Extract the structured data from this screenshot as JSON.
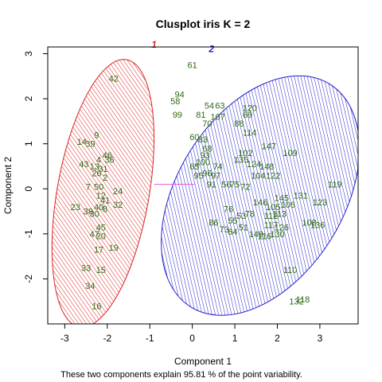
{
  "chart_data": {
    "type": "scatter",
    "title": "Clusplot iris K = 2",
    "xlabel": "Component 1",
    "ylabel": "Component 2",
    "subtitle": "These two components explain 95.81 % of the point variability.",
    "xlim": [
      -3.4,
      3.9
    ],
    "ylim": [
      -3.0,
      3.15
    ],
    "xticks": [
      "-3",
      "-2",
      "-1",
      "0",
      "1",
      "2",
      "3"
    ],
    "yticks": [
      "-2",
      "-1",
      "0",
      "1",
      "2",
      "3"
    ],
    "label_color": "#2e6b16",
    "clusters": [
      {
        "label": "1",
        "color": "#dd2222",
        "center": [
          -2.1,
          -0.1
        ],
        "rx": 1.05,
        "ry": 3.1,
        "angle_deg": 80,
        "label_pos": [
          -0.9,
          3.1
        ]
      },
      {
        "label": "2",
        "color": "#2222cc",
        "center": [
          1.6,
          -0.15
        ],
        "rx": 1.9,
        "ry": 3.0,
        "angle_deg": 58,
        "label_pos": [
          0.45,
          3.0
        ]
      }
    ],
    "link": {
      "x": [
        -0.9,
        0.05
      ],
      "y": [
        0.1,
        0.1
      ],
      "color": "#e055e0"
    },
    "points": [
      {
        "id": "42",
        "x": -1.85,
        "y": 2.45
      },
      {
        "id": "9",
        "x": -2.25,
        "y": 1.2
      },
      {
        "id": "14",
        "x": -2.6,
        "y": 1.05
      },
      {
        "id": "39",
        "x": -2.4,
        "y": 1.0
      },
      {
        "id": "4",
        "x": -2.2,
        "y": 0.65
      },
      {
        "id": "46",
        "x": -2.0,
        "y": 0.75
      },
      {
        "id": "36",
        "x": -1.95,
        "y": 0.65
      },
      {
        "id": "43",
        "x": -2.55,
        "y": 0.55
      },
      {
        "id": "13",
        "x": -2.3,
        "y": 0.5
      },
      {
        "id": "31",
        "x": -2.1,
        "y": 0.45
      },
      {
        "id": "26",
        "x": -2.25,
        "y": 0.35
      },
      {
        "id": "2",
        "x": -2.05,
        "y": 0.25
      },
      {
        "id": "7",
        "x": -2.45,
        "y": 0.05
      },
      {
        "id": "50",
        "x": -2.2,
        "y": 0.05
      },
      {
        "id": "24",
        "x": -1.75,
        "y": -0.05
      },
      {
        "id": "12",
        "x": -2.15,
        "y": -0.15
      },
      {
        "id": "41",
        "x": -2.05,
        "y": -0.25
      },
      {
        "id": "23",
        "x": -2.75,
        "y": -0.4
      },
      {
        "id": "38",
        "x": -2.45,
        "y": -0.5
      },
      {
        "id": "40",
        "x": -2.2,
        "y": -0.4
      },
      {
        "id": "8",
        "x": -2.05,
        "y": -0.45
      },
      {
        "id": "32",
        "x": -1.75,
        "y": -0.35
      },
      {
        "id": "30",
        "x": -2.3,
        "y": -0.55
      },
      {
        "id": "45",
        "x": -2.15,
        "y": -0.85
      },
      {
        "id": "47",
        "x": -2.3,
        "y": -1.0
      },
      {
        "id": "20",
        "x": -2.15,
        "y": -1.05
      },
      {
        "id": "17",
        "x": -2.2,
        "y": -1.35
      },
      {
        "id": "19",
        "x": -1.85,
        "y": -1.3
      },
      {
        "id": "33",
        "x": -2.5,
        "y": -1.75
      },
      {
        "id": "15",
        "x": -2.15,
        "y": -1.8
      },
      {
        "id": "34",
        "x": -2.4,
        "y": -2.15
      },
      {
        "id": "16",
        "x": -2.25,
        "y": -2.6
      },
      {
        "id": "61",
        "x": 0.0,
        "y": 2.75
      },
      {
        "id": "94",
        "x": -0.3,
        "y": 2.1
      },
      {
        "id": "58",
        "x": -0.4,
        "y": 1.95
      },
      {
        "id": "99",
        "x": -0.35,
        "y": 1.65
      },
      {
        "id": "54",
        "x": 0.4,
        "y": 1.85
      },
      {
        "id": "63",
        "x": 0.65,
        "y": 1.85
      },
      {
        "id": "120",
        "x": 1.35,
        "y": 1.8
      },
      {
        "id": "69",
        "x": 1.3,
        "y": 1.65
      },
      {
        "id": "81",
        "x": 0.2,
        "y": 1.65
      },
      {
        "id": "107",
        "x": 0.6,
        "y": 1.6
      },
      {
        "id": "88",
        "x": 1.1,
        "y": 1.45
      },
      {
        "id": "70",
        "x": 0.35,
        "y": 1.45
      },
      {
        "id": "60",
        "x": 0.05,
        "y": 1.15
      },
      {
        "id": "114",
        "x": 1.35,
        "y": 1.25
      },
      {
        "id": "83",
        "x": 0.25,
        "y": 1.1
      },
      {
        "id": "147",
        "x": 1.8,
        "y": 0.95
      },
      {
        "id": "109",
        "x": 2.3,
        "y": 0.8
      },
      {
        "id": "68",
        "x": 0.35,
        "y": 0.9
      },
      {
        "id": "93",
        "x": 0.3,
        "y": 0.75
      },
      {
        "id": "102",
        "x": 1.25,
        "y": 0.8
      },
      {
        "id": "135",
        "x": 1.15,
        "y": 0.65
      },
      {
        "id": "100",
        "x": 0.25,
        "y": 0.6
      },
      {
        "id": "148",
        "x": 1.75,
        "y": 0.5
      },
      {
        "id": "124",
        "x": 1.45,
        "y": 0.55
      },
      {
        "id": "65",
        "x": 0.05,
        "y": 0.5
      },
      {
        "id": "74",
        "x": 0.6,
        "y": 0.5
      },
      {
        "id": "122",
        "x": 1.9,
        "y": 0.3
      },
      {
        "id": "95",
        "x": 0.15,
        "y": 0.3
      },
      {
        "id": "96",
        "x": 0.35,
        "y": 0.35
      },
      {
        "id": "97",
        "x": 0.55,
        "y": 0.3
      },
      {
        "id": "104",
        "x": 1.55,
        "y": 0.3
      },
      {
        "id": "119",
        "x": 3.35,
        "y": 0.1
      },
      {
        "id": "91",
        "x": 0.45,
        "y": 0.1
      },
      {
        "id": "56",
        "x": 0.8,
        "y": 0.1
      },
      {
        "id": "75",
        "x": 1.0,
        "y": 0.1
      },
      {
        "id": "72",
        "x": 1.25,
        "y": 0.05
      },
      {
        "id": "131",
        "x": 2.55,
        "y": -0.15
      },
      {
        "id": "123",
        "x": 3.0,
        "y": -0.3
      },
      {
        "id": "145",
        "x": 2.1,
        "y": -0.2
      },
      {
        "id": "106",
        "x": 2.25,
        "y": -0.35
      },
      {
        "id": "105",
        "x": 1.9,
        "y": -0.4
      },
      {
        "id": "146",
        "x": 1.6,
        "y": -0.3
      },
      {
        "id": "112",
        "x": 1.85,
        "y": -0.6
      },
      {
        "id": "113",
        "x": 2.05,
        "y": -0.55
      },
      {
        "id": "78",
        "x": 1.35,
        "y": -0.55
      },
      {
        "id": "53",
        "x": 1.15,
        "y": -0.6
      },
      {
        "id": "55",
        "x": 0.95,
        "y": -0.7
      },
      {
        "id": "76",
        "x": 0.85,
        "y": -0.45
      },
      {
        "id": "84",
        "x": 0.95,
        "y": -0.95
      },
      {
        "id": "51",
        "x": 1.2,
        "y": -0.85
      },
      {
        "id": "117",
        "x": 1.85,
        "y": -0.8
      },
      {
        "id": "126",
        "x": 2.1,
        "y": -0.85
      },
      {
        "id": "130",
        "x": 2.0,
        "y": -1.0
      },
      {
        "id": "149",
        "x": 1.5,
        "y": -1.0
      },
      {
        "id": "116",
        "x": 1.7,
        "y": -1.05
      },
      {
        "id": "108",
        "x": 2.75,
        "y": -0.75
      },
      {
        "id": "136",
        "x": 2.95,
        "y": -0.8
      },
      {
        "id": "86",
        "x": 0.5,
        "y": -0.75
      },
      {
        "id": "73",
        "x": 0.75,
        "y": -0.9
      },
      {
        "id": "110",
        "x": 2.3,
        "y": -1.8
      },
      {
        "id": "132",
        "x": 2.45,
        "y": -2.5
      },
      {
        "id": "118",
        "x": 2.6,
        "y": -2.45
      }
    ]
  }
}
